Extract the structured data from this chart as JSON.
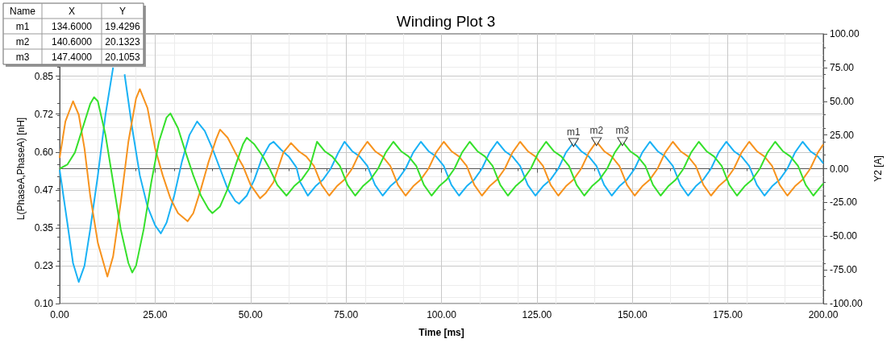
{
  "chart_data": {
    "type": "line",
    "title": "Winding Plot 3",
    "xlabel": "Time [ms]",
    "ylabel": "L(PhaseA,PhaseA) [nH]",
    "y2label": "Y2 [A]",
    "xlim": [
      0,
      200
    ],
    "xticks": [
      {
        "value": 0,
        "label": "0.00"
      },
      {
        "value": 25,
        "label": "25.00"
      },
      {
        "value": 50,
        "label": "50.00"
      },
      {
        "value": 75,
        "label": "75.00"
      },
      {
        "value": 100,
        "label": "100.00"
      },
      {
        "value": 125,
        "label": "125.00"
      },
      {
        "value": 150,
        "label": "150.00"
      },
      {
        "value": 175,
        "label": "175.00"
      },
      {
        "value": 200,
        "label": "200.00"
      }
    ],
    "ylim": [
      0.1,
      0.99
    ],
    "yticks": [
      {
        "value": 0.1,
        "label": "0.10"
      },
      {
        "value": 0.225,
        "label": "0.23"
      },
      {
        "value": 0.35,
        "label": "0.35"
      },
      {
        "value": 0.475,
        "label": "0.47"
      },
      {
        "value": 0.6,
        "label": "0.60"
      },
      {
        "value": 0.725,
        "label": "0.72"
      },
      {
        "value": 0.85,
        "label": "0.85"
      }
    ],
    "y2lim": [
      -100,
      100
    ],
    "y2ticks": [
      {
        "value": -100,
        "label": "-100.00"
      },
      {
        "value": -75,
        "label": "-75.00"
      },
      {
        "value": -50,
        "label": "-50.00"
      },
      {
        "value": -25,
        "label": "-25.00"
      },
      {
        "value": 0,
        "label": "0.00"
      },
      {
        "value": 25,
        "label": "25.00"
      },
      {
        "value": 50,
        "label": "50.00"
      },
      {
        "value": 75,
        "label": "75.00"
      },
      {
        "value": 100,
        "label": "100.00"
      }
    ],
    "grid": true,
    "marker": "none",
    "line_style": "solid",
    "series": [
      {
        "color": "#1ab2f5",
        "axis": "y2",
        "x": [
          0,
          2,
          3.5,
          5,
          6.5,
          8,
          10,
          12,
          14,
          15.5,
          17,
          19,
          21,
          23,
          25,
          26.5,
          28,
          30,
          32,
          34,
          36,
          38,
          40,
          42,
          44,
          46,
          47,
          49,
          51,
          53,
          55,
          56,
          58,
          60,
          62,
          63,
          65,
          67,
          69,
          71,
          73,
          74.6,
          76.6,
          78.6,
          80.6,
          82.6,
          84.6,
          86.6,
          88.6,
          90.6,
          92.6,
          94.6,
          96.6,
          98.6,
          100.6,
          102.6,
          104.6,
          106.6,
          108.6,
          110.6,
          112.6,
          114.6,
          116.6,
          118.6,
          120.6,
          122.6,
          124.6,
          126.6,
          128.6,
          130.6,
          132.6,
          134.6,
          136.6,
          138.6,
          140.6,
          142.6,
          144.6,
          146.6,
          148.6,
          150.6,
          152.6,
          154.6,
          156.6,
          158.6,
          160.6,
          162.6,
          164.6,
          166.6,
          168.6,
          170.6,
          172.6,
          174.6,
          176.6,
          178.6,
          180.6,
          182.6,
          184.6,
          186.6,
          188.6,
          190.6,
          192.6,
          194.6,
          196.6,
          198.6,
          200
        ],
        "values": [
          -1,
          -40,
          -70,
          -84,
          -72,
          -45,
          -5,
          40,
          75,
          null,
          70,
          30,
          -5,
          -28,
          -42,
          -48,
          -40,
          -20,
          5,
          25,
          35,
          28,
          15,
          0,
          -15,
          -24,
          -26,
          -20,
          -8,
          8,
          18,
          20,
          14,
          9,
          1,
          -10,
          -20,
          -13,
          -8,
          0,
          12,
          20,
          13,
          9,
          2,
          -12,
          -20,
          -13,
          -8,
          0,
          12,
          20,
          13,
          9,
          2,
          -12,
          -20,
          -13,
          -8,
          0,
          12,
          20,
          13,
          9,
          2,
          -12,
          -20,
          -13,
          -8,
          0,
          12,
          19.4,
          13,
          9,
          2,
          -12,
          -20,
          -13,
          -8,
          0,
          12,
          20,
          13,
          9,
          2,
          -12,
          -20,
          -13,
          -8,
          0,
          12,
          20,
          13,
          9,
          2,
          -12,
          -20,
          -13,
          -8,
          0,
          12,
          20,
          13,
          9,
          4
        ]
      },
      {
        "color": "#f7931e",
        "axis": "y2",
        "x": [
          0,
          1.5,
          3.5,
          5,
          6.5,
          8,
          10,
          12.5,
          14,
          16,
          18,
          20,
          21,
          23,
          25,
          27,
          29,
          31,
          33.5,
          35,
          37,
          39,
          41,
          42,
          44,
          46,
          48,
          50,
          52.5,
          54,
          56,
          58.6,
          60.6,
          62.6,
          64.6,
          66.6,
          68.6,
          70.6,
          72.6,
          74.6,
          76.6,
          78.6,
          80.6,
          82.6,
          84.6,
          86.6,
          88.6,
          90.6,
          92.6,
          94.6,
          96.6,
          98.6,
          100.6,
          102.6,
          104.6,
          106.6,
          108.6,
          110.6,
          112.6,
          114.6,
          116.6,
          118.6,
          120.6,
          122.6,
          124.6,
          126.6,
          128.6,
          130.6,
          132.6,
          134.6,
          136.6,
          138.6,
          140.6,
          142.6,
          144.6,
          146.6,
          148.6,
          150.6,
          152.6,
          154.6,
          156.6,
          158.6,
          160.6,
          162.6,
          164.6,
          166.6,
          168.6,
          170.6,
          172.6,
          174.6,
          176.6,
          178.6,
          180.6,
          182.6,
          184.6,
          186.6,
          188.6,
          190.6,
          192.6,
          194.6,
          196.6,
          198.6,
          200
        ],
        "values": [
          8,
          35,
          50,
          40,
          15,
          -20,
          -55,
          -80,
          -65,
          -25,
          20,
          52,
          59,
          45,
          15,
          -5,
          -22,
          -33,
          -39,
          -33,
          -15,
          5,
          22,
          29,
          23,
          12,
          2,
          -12,
          -22,
          -18,
          -10,
          12,
          19,
          13,
          9,
          2,
          -12,
          -20,
          -13,
          -8,
          0,
          12,
          20,
          13,
          9,
          2,
          -12,
          -20,
          -13,
          -8,
          0,
          12,
          20,
          13,
          9,
          2,
          -12,
          -20,
          -13,
          -8,
          0,
          12,
          20,
          13,
          9,
          2,
          -12,
          -20,
          -13,
          -8,
          0,
          12,
          20.1,
          13,
          9,
          2,
          -12,
          -20,
          -13,
          -8,
          0,
          12,
          20,
          13,
          9,
          2,
          -12,
          -20,
          -13,
          -8,
          0,
          12,
          20,
          13,
          9,
          2,
          -12,
          -20,
          -13,
          -8,
          0,
          12,
          18
        ]
      },
      {
        "color": "#36e02c",
        "axis": "y2",
        "x": [
          0,
          2,
          4,
          6,
          8,
          9,
          10,
          12,
          14,
          16,
          18,
          19,
          20,
          22,
          24,
          26,
          28,
          29,
          31,
          33,
          35,
          37,
          39,
          40,
          42,
          44,
          46,
          48,
          49,
          51,
          53,
          55,
          57,
          59.4,
          61.4,
          63.4,
          65.4,
          67.4,
          69.4,
          71.4,
          73.4,
          75.4,
          77.4,
          79.4,
          81.4,
          83.4,
          85.4,
          87.4,
          89.4,
          91.4,
          93.4,
          95.4,
          97.4,
          99.4,
          101.4,
          103.4,
          105.4,
          107.4,
          109.4,
          111.4,
          113.4,
          115.4,
          117.4,
          119.4,
          121.4,
          123.4,
          125.4,
          127.4,
          129.4,
          131.4,
          133.4,
          135.4,
          137.4,
          139.4,
          141.4,
          143.4,
          145.4,
          147.4,
          149.4,
          151.4,
          153.4,
          155.4,
          157.4,
          159.4,
          161.4,
          163.4,
          165.4,
          167.4,
          169.4,
          171.4,
          173.4,
          175.4,
          177.4,
          179.4,
          181.4,
          183.4,
          185.4,
          187.4,
          189.4,
          191.4,
          193.4,
          195.4,
          197.4,
          199.4,
          200
        ],
        "values": [
          0,
          3,
          12,
          30,
          48,
          53,
          50,
          25,
          -10,
          -45,
          -70,
          -77,
          -72,
          -45,
          -10,
          20,
          38,
          41,
          30,
          12,
          -5,
          -20,
          -30,
          -33,
          -28,
          -15,
          2,
          18,
          23,
          18,
          10,
          0,
          -12,
          -20,
          -13,
          -8,
          0,
          20,
          13,
          9,
          2,
          -12,
          -20,
          -13,
          -8,
          0,
          12,
          20,
          13,
          9,
          2,
          -12,
          -20,
          -13,
          -8,
          0,
          12,
          20,
          13,
          9,
          2,
          -12,
          -20,
          -13,
          -8,
          0,
          12,
          20,
          13,
          9,
          2,
          -12,
          -20,
          -13,
          -8,
          0,
          12,
          20.1,
          13,
          9,
          2,
          -12,
          -20,
          -13,
          -8,
          0,
          12,
          20,
          13,
          9,
          2,
          -12,
          -20,
          -13,
          -8,
          0,
          12,
          20,
          13,
          9,
          2,
          -12,
          -20,
          -13,
          -11
        ]
      },
      {
        "type": "scatter",
        "marker": "triangle",
        "color": "#000000",
        "axis": "y2",
        "x": [
          134.6,
          140.6,
          147.4
        ],
        "values": [
          19.4,
          20.1,
          20.1
        ],
        "value_labels": [
          "m1",
          "m2",
          "m3"
        ]
      }
    ],
    "annotations": [
      "Name",
      "X",
      "Y",
      "m1",
      "134.6000",
      "19.4296",
      "m2",
      "140.6000",
      "20.1323",
      "m3",
      "147.4000",
      "20.1053"
    ]
  }
}
